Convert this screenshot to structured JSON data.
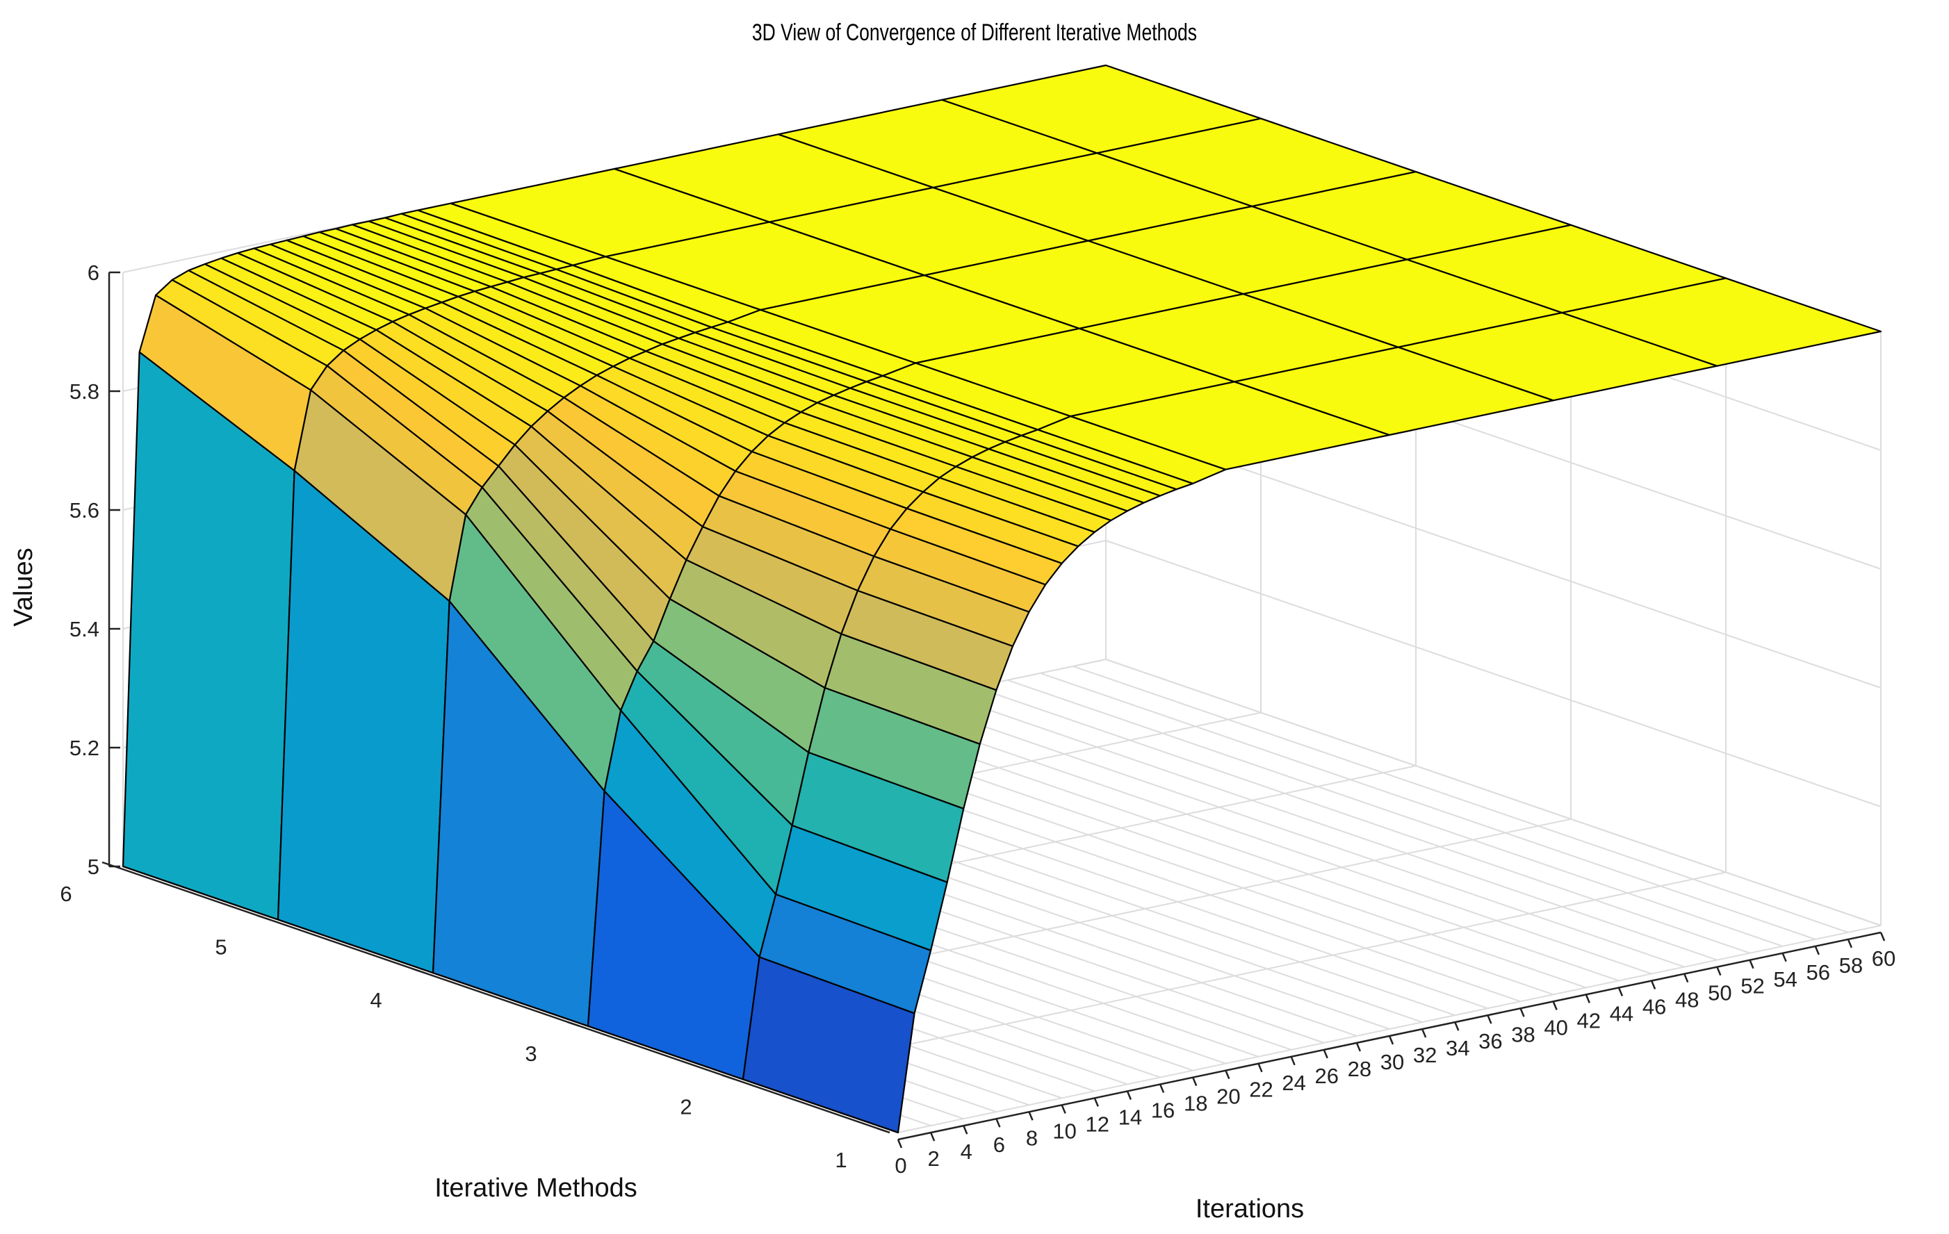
{
  "chart_data": {
    "type": "surface3d",
    "title": "3D View of Convergence of Different Iterative Methods",
    "xlabel": "Iterations",
    "ylabel": "Iterative Methods",
    "zlabel": "Values",
    "x_ticks": [
      "0",
      "2",
      "4",
      "6",
      "8",
      "10",
      "12",
      "14",
      "16",
      "18",
      "20",
      "22",
      "24",
      "26",
      "28",
      "30",
      "32",
      "34",
      "36",
      "38",
      "40",
      "42",
      "44",
      "46",
      "48",
      "50",
      "52",
      "54",
      "56",
      "58",
      "60"
    ],
    "y_ticks": [
      "1",
      "2",
      "3",
      "4",
      "5",
      "6"
    ],
    "z_ticks": [
      "5",
      "5.2",
      "5.4",
      "5.6",
      "5.8",
      "6"
    ],
    "xlim": [
      0,
      60
    ],
    "ylim": [
      1,
      6
    ],
    "zlim": [
      5,
      6
    ],
    "grid": true,
    "colormap": [
      "#352a87",
      "#0f5cdd",
      "#1481d6",
      "#06a4ca",
      "#2eb7a4",
      "#87bf77",
      "#d1bb59",
      "#fec832",
      "#f9fb0e"
    ],
    "edge_color": "#000000",
    "series": [
      {
        "name": "1",
        "x": [
          0,
          1,
          2,
          3,
          4,
          5,
          6,
          7,
          8,
          9,
          10,
          11,
          12,
          13,
          14,
          15,
          16,
          17,
          18,
          20,
          30,
          40,
          50,
          60
        ],
        "values": [
          5.0,
          5.195,
          5.295,
          5.404,
          5.522,
          5.625,
          5.71,
          5.778,
          5.83,
          5.87,
          5.9,
          5.923,
          5.941,
          5.955,
          5.965,
          5.973,
          5.979,
          5.984,
          5.988,
          6.0,
          6.0,
          6.0,
          6.0,
          6.0
        ]
      },
      {
        "name": "2",
        "x": [
          0,
          1,
          2,
          3,
          4,
          5,
          6,
          7,
          8,
          9,
          10,
          11,
          12,
          13,
          14,
          15,
          16,
          17,
          18,
          20,
          30,
          40,
          50,
          60
        ],
        "values": [
          5.0,
          5.2,
          5.3,
          5.41,
          5.527,
          5.63,
          5.715,
          5.782,
          5.834,
          5.874,
          5.903,
          5.925,
          5.943,
          5.956,
          5.966,
          5.974,
          5.98,
          5.985,
          5.989,
          6.0,
          6.0,
          6.0,
          6.0,
          6.0
        ]
      },
      {
        "name": "3",
        "x": [
          0,
          1,
          2,
          3,
          4,
          5,
          6,
          7,
          8,
          9,
          10,
          11,
          12,
          13,
          14,
          15,
          16,
          17,
          18,
          20,
          30,
          40,
          50,
          60
        ],
        "values": [
          5.0,
          5.39,
          5.52,
          5.58,
          5.625,
          5.69,
          5.75,
          5.8,
          5.846,
          5.882,
          5.909,
          5.93,
          5.946,
          5.958,
          5.968,
          5.975,
          5.981,
          5.986,
          5.99,
          6.0,
          6.0,
          6.0,
          6.0,
          6.0
        ]
      },
      {
        "name": "4",
        "x": [
          0,
          1,
          2,
          3,
          4,
          5,
          6,
          7,
          8,
          9,
          10,
          11,
          12,
          13,
          14,
          15,
          16,
          17,
          18,
          20,
          30,
          40,
          50,
          60
        ],
        "values": [
          5.0,
          5.62,
          5.76,
          5.8,
          5.83,
          5.86,
          5.885,
          5.905,
          5.922,
          5.936,
          5.948,
          5.957,
          5.965,
          5.971,
          5.977,
          5.981,
          5.985,
          5.988,
          5.991,
          6.0,
          6.0,
          6.0,
          6.0,
          6.0
        ]
      },
      {
        "name": "5",
        "x": [
          0,
          1,
          2,
          3,
          4,
          5,
          6,
          7,
          8,
          9,
          10,
          11,
          12,
          13,
          14,
          15,
          16,
          17,
          18,
          20,
          30,
          40,
          50,
          60
        ],
        "values": [
          5.0,
          5.75,
          5.88,
          5.915,
          5.935,
          5.948,
          5.958,
          5.966,
          5.972,
          5.977,
          5.981,
          5.985,
          5.988,
          5.99,
          5.992,
          5.994,
          5.995,
          5.996,
          5.997,
          6.0,
          6.0,
          6.0,
          6.0,
          6.0
        ]
      },
      {
        "name": "6",
        "x": [
          0,
          1,
          2,
          3,
          4,
          5,
          6,
          7,
          8,
          9,
          10,
          11,
          12,
          13,
          14,
          15,
          16,
          17,
          18,
          20,
          30,
          40,
          50,
          60
        ],
        "values": [
          5.0,
          5.86,
          5.95,
          5.97,
          5.98,
          5.985,
          5.989,
          5.992,
          5.994,
          5.995,
          5.996,
          5.997,
          5.998,
          5.998,
          5.999,
          5.999,
          5.999,
          6.0,
          6.0,
          6.0,
          6.0,
          6.0,
          6.0,
          6.0
        ]
      }
    ]
  }
}
